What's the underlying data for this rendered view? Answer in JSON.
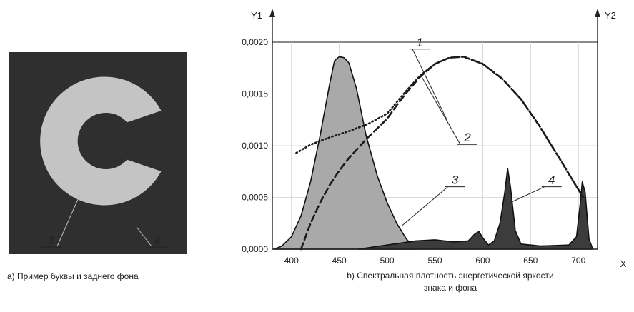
{
  "figure_a": {
    "caption": "а) Пример буквы и заднего фона",
    "letter": "C",
    "label_letter": "3",
    "label_background": "4",
    "colors": {
      "background": "#2f2f2f",
      "letter": "#c4c4c4"
    }
  },
  "figure_b": {
    "caption_line1": "b) Спектральная плотность энергетической яркости",
    "caption_line2": "знака и фона"
  },
  "chart_data": {
    "type": "line",
    "title": "",
    "xlabel": "X",
    "ylabel_left": "Y1",
    "ylabel_right": "Y2",
    "xlim": [
      380,
      720
    ],
    "ylim": [
      0,
      0.002
    ],
    "x_ticks": [
      400,
      450,
      500,
      550,
      600,
      650,
      700
    ],
    "x_tick_labels": [
      "400",
      "450",
      "500",
      "550",
      "600",
      "650",
      "700"
    ],
    "y_ticks": [
      0,
      0.0005,
      0.001,
      0.0015,
      0.002
    ],
    "y_tick_labels": [
      "0,0000",
      "0,0005",
      "0,0010",
      "0,0015",
      "0,0020"
    ],
    "grid": true,
    "series": [
      {
        "id": "curve-1",
        "callout": "1",
        "style": "dotted",
        "color": "#1a1a1a",
        "points": [
          [
            405,
            0.00093
          ],
          [
            420,
            0.00101
          ],
          [
            440,
            0.00108
          ],
          [
            460,
            0.00114
          ],
          [
            480,
            0.00121
          ],
          [
            500,
            0.00131
          ],
          [
            510,
            0.00142
          ],
          [
            520,
            0.00153
          ],
          [
            535,
            0.00168
          ],
          [
            550,
            0.00179
          ],
          [
            565,
            0.00185
          ],
          [
            580,
            0.00186
          ],
          [
            600,
            0.00179
          ],
          [
            620,
            0.00165
          ],
          [
            640,
            0.00145
          ],
          [
            660,
            0.00118
          ],
          [
            680,
            0.00088
          ],
          [
            695,
            0.00065
          ],
          [
            705,
            0.0005
          ]
        ]
      },
      {
        "id": "curve-2",
        "callout": "2",
        "style": "dashed",
        "color": "#1a1a1a",
        "points": [
          [
            410,
            0.0
          ],
          [
            420,
            0.00025
          ],
          [
            430,
            0.00045
          ],
          [
            440,
            0.00062
          ],
          [
            450,
            0.00076
          ],
          [
            460,
            0.00088
          ],
          [
            470,
            0.00098
          ],
          [
            480,
            0.00108
          ],
          [
            490,
            0.00117
          ],
          [
            500,
            0.00126
          ],
          [
            510,
            0.00139
          ],
          [
            520,
            0.00151
          ],
          [
            535,
            0.00167
          ],
          [
            550,
            0.00179
          ],
          [
            565,
            0.00185
          ],
          [
            580,
            0.00186
          ],
          [
            600,
            0.00179
          ],
          [
            620,
            0.00165
          ],
          [
            640,
            0.00145
          ],
          [
            660,
            0.00118
          ],
          [
            680,
            0.00088
          ],
          [
            695,
            0.00065
          ],
          [
            705,
            0.0005
          ]
        ]
      },
      {
        "id": "curve-3",
        "callout": "3",
        "style": "filled",
        "color": "#a9a9a9",
        "points": [
          [
            382,
            0.0
          ],
          [
            390,
            3e-05
          ],
          [
            400,
            0.00012
          ],
          [
            410,
            0.00032
          ],
          [
            420,
            0.00065
          ],
          [
            430,
            0.0011
          ],
          [
            440,
            0.0016
          ],
          [
            445,
            0.00182
          ],
          [
            450,
            0.00186
          ],
          [
            455,
            0.00185
          ],
          [
            460,
            0.0018
          ],
          [
            468,
            0.00155
          ],
          [
            478,
            0.0011
          ],
          [
            490,
            0.0007
          ],
          [
            500,
            0.00045
          ],
          [
            510,
            0.00025
          ],
          [
            520,
            0.0001
          ],
          [
            530,
            0.0
          ]
        ]
      },
      {
        "id": "curve-4",
        "callout": "4",
        "style": "filled",
        "color": "#3c3c3c",
        "points": [
          [
            470,
            0.0
          ],
          [
            500,
            4e-05
          ],
          [
            530,
            8e-05
          ],
          [
            550,
            9e-05
          ],
          [
            570,
            7e-05
          ],
          [
            585,
            8e-05
          ],
          [
            592,
            0.00015
          ],
          [
            596,
            0.00017
          ],
          [
            600,
            0.00011
          ],
          [
            606,
            4e-05
          ],
          [
            612,
            8e-05
          ],
          [
            618,
            0.00025
          ],
          [
            623,
            0.00055
          ],
          [
            626,
            0.00078
          ],
          [
            629,
            0.0006
          ],
          [
            634,
            0.00018
          ],
          [
            640,
            5e-05
          ],
          [
            660,
            3e-05
          ],
          [
            690,
            4e-05
          ],
          [
            698,
            0.00012
          ],
          [
            702,
            0.00045
          ],
          [
            704,
            0.00065
          ],
          [
            707,
            0.00055
          ],
          [
            711,
            0.0001
          ],
          [
            715,
            0.0
          ]
        ]
      }
    ]
  }
}
